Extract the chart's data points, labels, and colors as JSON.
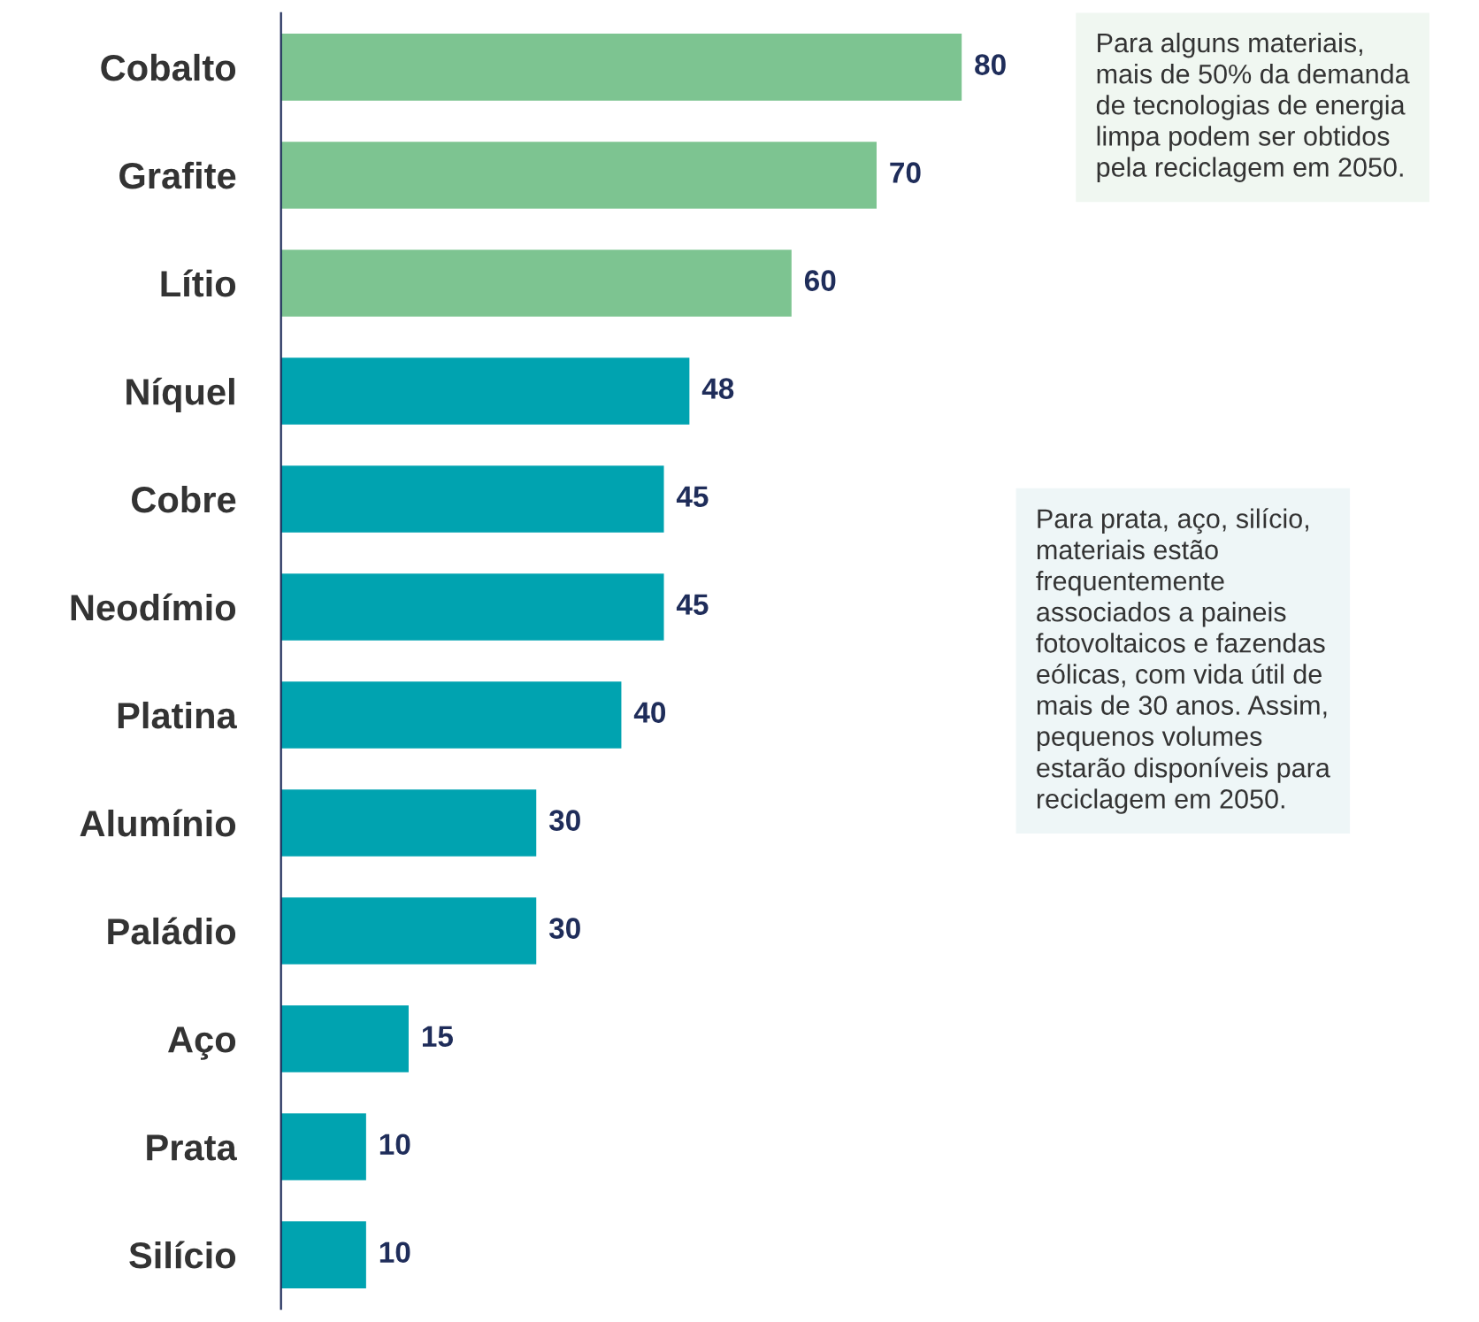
{
  "chart_data": {
    "type": "bar",
    "orientation": "horizontal",
    "categories": [
      "Cobalto",
      "Grafite",
      "Lítio",
      "Níquel",
      "Cobre",
      "Neodímio",
      "Platina",
      "Alumínio",
      "Paládio",
      "Aço",
      "Prata",
      "Silício"
    ],
    "values": [
      80,
      70,
      60,
      48,
      45,
      45,
      40,
      30,
      30,
      15,
      10,
      10
    ],
    "colors": [
      "#7dc491",
      "#7dc491",
      "#7dc491",
      "#00a3b0",
      "#00a3b0",
      "#00a3b0",
      "#00a3b0",
      "#00a3b0",
      "#00a3b0",
      "#00a3b0",
      "#00a3b0",
      "#00a3b0"
    ],
    "data_labels": true,
    "grid": false,
    "legend": false,
    "tick_labels": "y",
    "annotations": [
      "Para alguns materiais,\nmais de 50% da demanda\nde tecnologias de energia\nlimpa podem ser obtidos\npela reciclagem em 2050.",
      "Para prata, aço, silício,\nmateriais estão\nfrequentemente\nassociados a paineis\nfotovoltaicos e fazendas\neólicas, com vida útil de\nmais de 30 anos. Assim,\npequenos volumes\nestarão disponíveis para\nreciclagem em 2050."
    ]
  }
}
